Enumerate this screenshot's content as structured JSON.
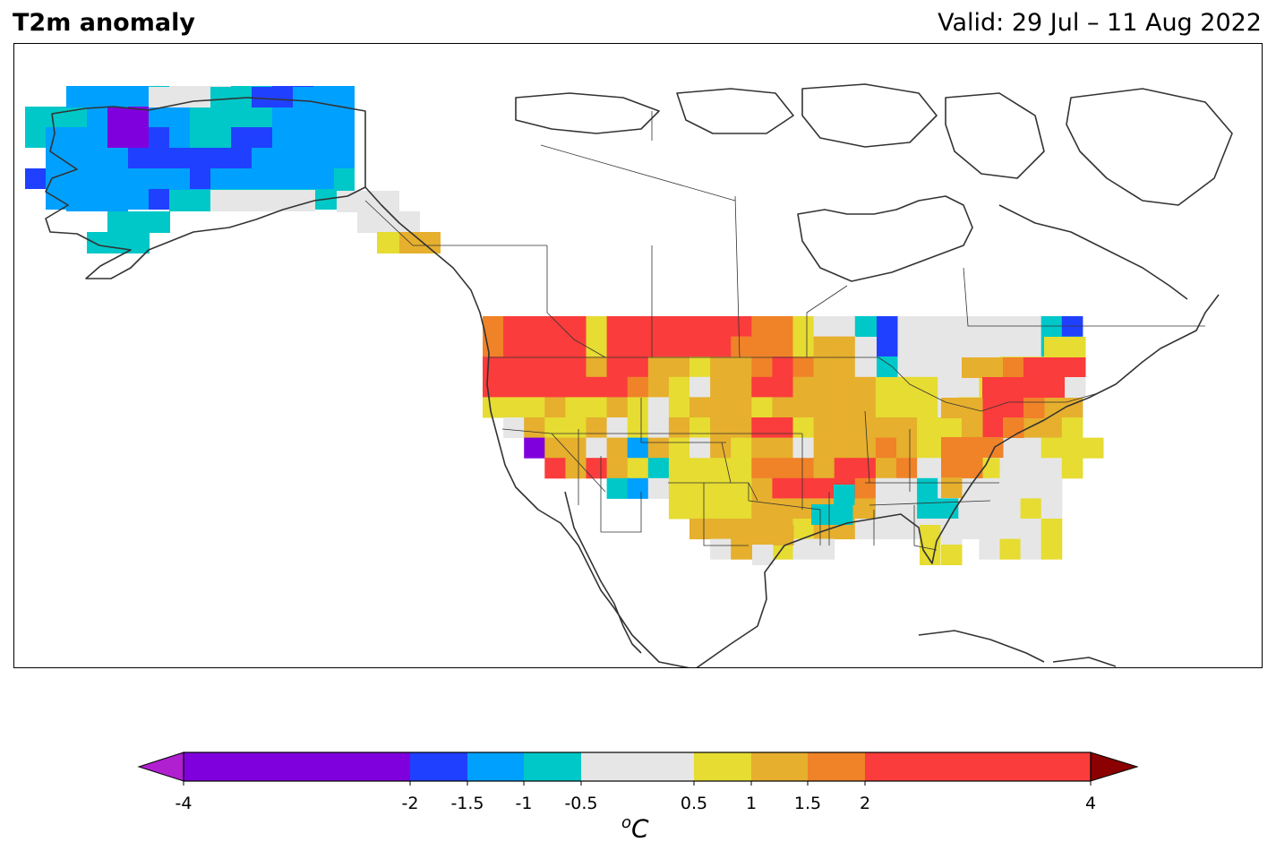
{
  "header": {
    "title": "T2m anomaly",
    "valid": "Valid: 29 Jul – 11 Aug 2022"
  },
  "colorbar": {
    "ticks": [
      "-4",
      "-2",
      "-1.5",
      "-1",
      "-0.5",
      "0.5",
      "1",
      "1.5",
      "2",
      "4"
    ],
    "unit_base": "C",
    "unit_sup": "o",
    "bins": [
      {
        "from": "-4",
        "to": "-2",
        "color": "#8000dd"
      },
      {
        "from": "-2",
        "to": "-1.5",
        "color": "#2040ff"
      },
      {
        "from": "-1.5",
        "to": "-1",
        "color": "#00a0ff"
      },
      {
        "from": "-1",
        "to": "-0.5",
        "color": "#00c8c8"
      },
      {
        "from": "-0.5",
        "to": "0.5",
        "color": "#e6e6e6"
      },
      {
        "from": "0.5",
        "to": "1",
        "color": "#e6dc32"
      },
      {
        "from": "1",
        "to": "1.5",
        "color": "#e6af2d"
      },
      {
        "from": "1.5",
        "to": "2",
        "color": "#f08228"
      },
      {
        "from": "2",
        "to": "4",
        "color": "#fa3c3c"
      }
    ],
    "under_color": "#b020d0",
    "over_color": "#8b0000"
  },
  "map": {
    "region": "North America",
    "anomaly_summary": {
      "alaska": "below normal (-0.5 to below -2)",
      "western_us": "above normal (2 to 4)",
      "northeast_us": "above normal (2 to 4)",
      "south_central_us": "above normal (1 to 4)"
    }
  }
}
